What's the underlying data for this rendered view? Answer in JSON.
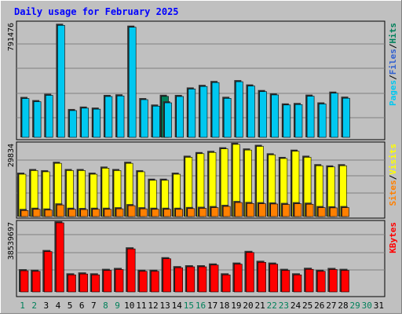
{
  "chart_data": {
    "type": "bar",
    "title": "Daily usage for February 2025",
    "categories": [
      "1",
      "2",
      "3",
      "4",
      "5",
      "6",
      "7",
      "8",
      "9",
      "10",
      "11",
      "12",
      "13",
      "14",
      "15",
      "16",
      "17",
      "18",
      "19",
      "20",
      "21",
      "22",
      "23",
      "24",
      "25",
      "26",
      "27",
      "28",
      "29",
      "30",
      "31"
    ],
    "weekend_days": [
      "1",
      "2",
      "8",
      "9",
      "15",
      "16",
      "22",
      "23",
      "29",
      "30"
    ],
    "panels": [
      {
        "id": "top",
        "y_tick_label": "791476",
        "ylim": [
          0,
          791476
        ],
        "grid": true,
        "legend": [
          "Pages",
          "/",
          "Files",
          "/",
          "Hits"
        ],
        "series": [
          {
            "name": "Hits",
            "color": "#00805a",
            "values": [
              0,
              0,
              0,
              0,
              0,
              0,
              0,
              0,
              0,
              0,
              0,
              0,
              285000,
              0,
              0,
              0,
              0,
              0,
              0,
              0,
              0,
              0,
              0,
              0,
              0,
              0,
              0,
              0,
              0,
              0,
              0
            ]
          },
          {
            "name": "Files",
            "color": "#3060d0",
            "values": [
              0,
              0,
              0,
              0,
              0,
              0,
              0,
              0,
              0,
              0,
              0,
              0,
              0,
              0,
              0,
              0,
              0,
              0,
              0,
              0,
              0,
              0,
              0,
              0,
              0,
              0,
              0,
              0,
              0,
              0,
              0
            ]
          },
          {
            "name": "Pages",
            "color": "#00c8f0",
            "values": [
              270000,
              248000,
              292000,
              779000,
              186000,
              203000,
              196000,
              284000,
              288000,
              766000,
              262000,
              217000,
              240000,
              284000,
              336000,
              354000,
              381000,
              271000,
              387000,
              357000,
              318000,
              295000,
              225000,
              228000,
              286000,
              232000,
              307000,
              272000,
              0,
              0,
              0
            ]
          }
        ]
      },
      {
        "id": "middle",
        "y_tick_label": "29834",
        "ylim": [
          0,
          29834
        ],
        "grid": true,
        "legend": [
          "Sites",
          "/",
          "Visits"
        ],
        "series": [
          {
            "name": "Visits",
            "color": "#ffff00",
            "values": [
              17500,
              19000,
              18500,
              22000,
              19000,
              19000,
              17500,
              20000,
              19000,
              22000,
              18500,
              15000,
              15000,
              17500,
              24500,
              26000,
              26500,
              28000,
              29834,
              27500,
              29000,
              25500,
              24000,
              27000,
              24500,
              21000,
              20500,
              21000,
              0,
              0,
              0
            ]
          },
          {
            "name": "Sites",
            "color": "#ff8000",
            "values": [
              2500,
              3000,
              2700,
              4800,
              3000,
              2900,
              3000,
              3000,
              3200,
              4500,
              3200,
              3000,
              3000,
              3000,
              3300,
              3400,
              3700,
              4200,
              5800,
              5400,
              5300,
              5200,
              5000,
              5300,
              5100,
              3700,
              3600,
              3700,
              0,
              0,
              0
            ]
          }
        ]
      },
      {
        "id": "bottom",
        "y_tick_label": "38539697",
        "ylim": [
          0,
          38539697
        ],
        "grid": true,
        "legend": [
          "KBytes"
        ],
        "series": [
          {
            "name": "KBytes",
            "color": "#ff0000",
            "values": [
              11800000,
              11500000,
              22500000,
              38539697,
              9500000,
              10000000,
              9500000,
              12000000,
              12500000,
              24000000,
              11500000,
              11500000,
              18500000,
              13500000,
              14000000,
              14000000,
              15000000,
              9500000,
              15500000,
              22000000,
              16500000,
              15500000,
              12000000,
              9500000,
              12600000,
              11500000,
              12500000,
              12000000,
              0,
              0,
              0
            ]
          }
        ]
      }
    ]
  },
  "colors": {
    "background": "#c0c0c0",
    "panel": "#c0c0c0",
    "grid": "#808080",
    "title": "#0000ff",
    "axis_text": "#000000",
    "weekend_text": "#00805a",
    "bevel_light": "#ffffff",
    "bevel_dark": "#808080"
  }
}
